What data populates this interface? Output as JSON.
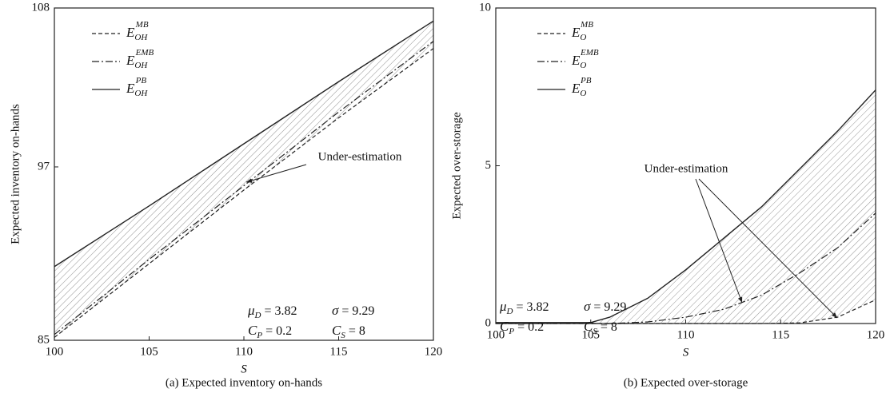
{
  "chart_data": [
    {
      "type": "line",
      "caption": "(a) Expected inventory on-hands",
      "xlabel": "S",
      "ylabel": "Expected inventory on-hands",
      "x": [
        100,
        105,
        110,
        115,
        120
      ],
      "xlim": [
        100,
        120
      ],
      "xticks": [
        100,
        105,
        110,
        115,
        120
      ],
      "ylim": [
        85,
        108
      ],
      "yticks": [
        85,
        97,
        108
      ],
      "series": [
        {
          "name": "E",
          "sub": "OH",
          "sup": "MB",
          "color": "#222",
          "dash": "dashed",
          "values": [
            85.2,
            90.3,
            95.4,
            100.4,
            105.2
          ]
        },
        {
          "name": "E",
          "sub": "OH",
          "sup": "EMB",
          "color": "#222",
          "dash": "dashdot",
          "values": [
            85.4,
            90.6,
            95.7,
            100.8,
            105.7
          ]
        },
        {
          "name": "E",
          "sub": "OH",
          "sup": "PB",
          "color": "#222",
          "dash": "solid",
          "values": [
            90.1,
            94.3,
            98.6,
            102.9,
            107.1
          ]
        }
      ],
      "annotation": "Under-estimation",
      "params": [
        {
          "base": "μ",
          "sub": "D",
          "rest": " = 3.82"
        },
        {
          "base": "σ",
          "sub": "",
          "rest": " = 9.29"
        },
        {
          "base": "C",
          "sub": "P",
          "rest": " = 0.2"
        },
        {
          "base": "C",
          "sub": "S",
          "rest": " = 8"
        }
      ]
    },
    {
      "type": "line",
      "caption": "(b) Expected over-storage",
      "xlabel": "S",
      "ylabel": "Expected over-storage",
      "x": [
        100,
        102,
        104,
        105,
        106,
        108,
        110,
        112,
        114,
        116,
        118,
        120
      ],
      "xlim": [
        100,
        120
      ],
      "xticks": [
        100,
        105,
        110,
        115,
        120
      ],
      "ylim": [
        0,
        10
      ],
      "yticks": [
        0,
        5,
        10
      ],
      "series": [
        {
          "name": "E",
          "sub": "O",
          "sup": "MB",
          "color": "#222",
          "dash": "dashed",
          "values": [
            0,
            0,
            0,
            0,
            0,
            0,
            0,
            0,
            0,
            0.02,
            0.2,
            0.75
          ]
        },
        {
          "name": "E",
          "sub": "O",
          "sup": "EMB",
          "color": "#222",
          "dash": "dashdot",
          "values": [
            0,
            0,
            0,
            0,
            0,
            0.05,
            0.2,
            0.45,
            0.9,
            1.6,
            2.4,
            3.5
          ]
        },
        {
          "name": "E",
          "sub": "O",
          "sup": "PB",
          "color": "#222",
          "dash": "solid",
          "values": [
            0.03,
            0.03,
            0.03,
            0.03,
            0.2,
            0.8,
            1.7,
            2.7,
            3.7,
            4.9,
            6.1,
            7.4
          ]
        }
      ],
      "annotation": "Under-estimation",
      "params": [
        {
          "base": "μ",
          "sub": "D",
          "rest": " = 3.82"
        },
        {
          "base": "σ",
          "sub": "",
          "rest": " = 9.29"
        },
        {
          "base": "C",
          "sub": "P",
          "rest": " = 0.2"
        },
        {
          "base": "C",
          "sub": "S",
          "rest": " = 8"
        }
      ]
    }
  ]
}
